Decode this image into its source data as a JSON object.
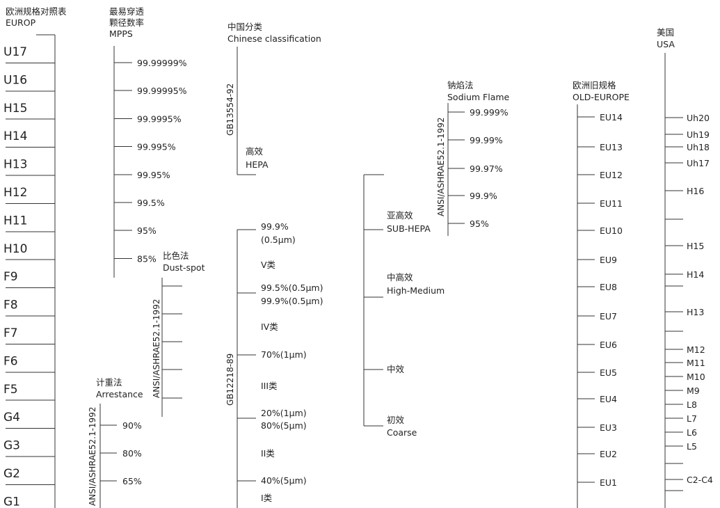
{
  "europe": {
    "header": [
      "欧洲规格对照表",
      "EUROP"
    ],
    "grades": [
      "U17",
      "U16",
      "H15",
      "H14",
      "H13",
      "H12",
      "H11",
      "H10",
      "F9",
      "F8",
      "F7",
      "F6",
      "F5",
      "G4",
      "G3",
      "G2",
      "G1"
    ]
  },
  "mpps": {
    "header": [
      "最易穿透",
      "颗径数率",
      "MPPS"
    ],
    "values": [
      "99.99999%",
      "99.99995%",
      "99.9995%",
      "99.995%",
      "99.95%",
      "99.5%",
      "95%",
      "85%"
    ]
  },
  "dustspot": {
    "header": [
      "比色法",
      "Dust-spot"
    ],
    "standard": "ANSI/ASHRAE52.1-1992"
  },
  "arrestance": {
    "header": [
      "计重法",
      "Arrestance"
    ],
    "standard": "ANSI/ASHRAE52.1-1992",
    "values": [
      "90%",
      "80%",
      "65%"
    ]
  },
  "chinese": {
    "header": [
      "中国分类",
      "Chinese classification"
    ],
    "standard_hepa": "GB13554-92",
    "hepa_label": [
      "高效",
      "HEPA"
    ],
    "standard_general": "GB12218-89",
    "labels": [
      [
        "99.9%",
        "(0.5μm)"
      ],
      [
        "V类"
      ],
      [
        "99.5%(0.5μm)",
        "99.9%(0.5μm)"
      ],
      [
        "IV类"
      ],
      [
        "70%(1μm)"
      ],
      [
        "III类"
      ],
      [
        "20%(1μm)",
        "80%(5μm)"
      ],
      [
        "II类"
      ],
      [
        "40%(5μm)"
      ],
      [
        "I类"
      ]
    ]
  },
  "efficiency": {
    "groups": [
      [
        "亚高效",
        "SUB-HEPA"
      ],
      [
        "中高效",
        "High-Medium"
      ],
      [
        "中效"
      ],
      [
        "初效",
        "Coarse"
      ]
    ]
  },
  "sodium": {
    "header": [
      "钠焰法",
      "Sodium Flame"
    ],
    "standard": "ANSI/ASHRAE52.1-1992",
    "values": [
      "99.999%",
      "99.99%",
      "99.97%",
      "99.9%",
      "95%"
    ]
  },
  "old_europe": {
    "header": [
      "欧洲旧规格",
      "OLD-EUROPE"
    ],
    "grades": [
      "EU14",
      "EU13",
      "EU12",
      "EU11",
      "EU10",
      "EU9",
      "EU8",
      "EU7",
      "EU6",
      "EU5",
      "EU4",
      "EU3",
      "EU2",
      "EU1"
    ]
  },
  "usa": {
    "header": [
      "美国",
      "USA"
    ],
    "grades": [
      "Uh20",
      "Uh19",
      "Uh18",
      "Uh17",
      "H16",
      "",
      "H15",
      "H14",
      "",
      "H13",
      "",
      "M12",
      "M11",
      "M10",
      "M9",
      "L8",
      "L7",
      "L6",
      "L5",
      "",
      "C2-C4",
      ""
    ]
  }
}
